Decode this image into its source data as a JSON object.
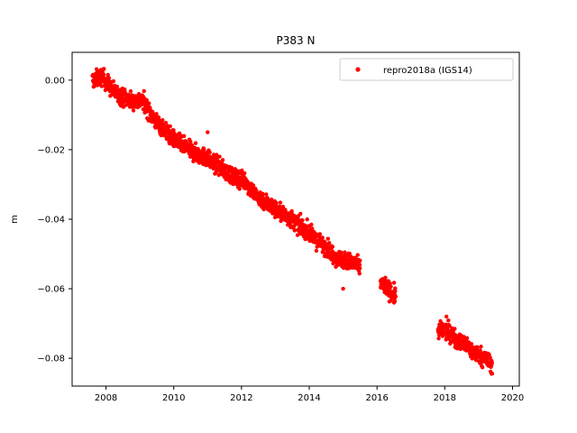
{
  "chart_data": {
    "type": "scatter",
    "title": "P383 N",
    "xlabel": "",
    "ylabel": "m",
    "xlim": [
      2007.0,
      2020.2
    ],
    "ylim": [
      -0.088,
      0.008
    ],
    "x_ticks": [
      "2008",
      "2010",
      "2012",
      "2014",
      "2016",
      "2018",
      "2020"
    ],
    "y_ticks": [
      "0.00",
      "−0.02",
      "−0.04",
      "−0.06",
      "−0.08"
    ],
    "grid": false,
    "legend_position": "top-right",
    "marker_color": "#ff0000",
    "series": [
      {
        "name": "repro2018a (IGS14)",
        "segments": [
          {
            "x": [
              2007.6,
              2007.9,
              2008.2,
              2008.5,
              2008.8,
              2009.1,
              2009.4,
              2009.7,
              2010.0,
              2010.3,
              2010.6,
              2010.9,
              2011.2,
              2011.5,
              2011.8,
              2012.1,
              2012.4,
              2012.7,
              2013.0,
              2013.3,
              2013.6,
              2013.9,
              2014.2,
              2014.5,
              2014.8,
              2015.1,
              2015.4,
              2015.5
            ],
            "y": [
              0.0,
              0.001,
              -0.003,
              -0.005,
              -0.006,
              -0.006,
              -0.011,
              -0.014,
              -0.017,
              -0.019,
              -0.021,
              -0.022,
              -0.024,
              -0.026,
              -0.028,
              -0.029,
              -0.033,
              -0.035,
              -0.037,
              -0.039,
              -0.041,
              -0.043,
              -0.046,
              -0.048,
              -0.051,
              -0.052,
              -0.053,
              -0.054
            ]
          },
          {
            "x": [
              2016.1,
              2016.25,
              2016.4,
              2016.55
            ],
            "y": [
              -0.058,
              -0.059,
              -0.061,
              -0.062
            ]
          },
          {
            "x": [
              2017.8,
              2018.0,
              2018.2,
              2018.4,
              2018.6,
              2018.8,
              2019.0,
              2019.2,
              2019.4
            ],
            "y": [
              -0.072,
              -0.072,
              -0.073,
              -0.075,
              -0.076,
              -0.078,
              -0.079,
              -0.08,
              -0.082
            ]
          }
        ],
        "outliers": [
          {
            "x": 2015.0,
            "y": -0.06
          },
          {
            "x": 2011.0,
            "y": -0.015
          },
          {
            "x": 2016.5,
            "y": -0.064
          },
          {
            "x": 2018.05,
            "y": -0.068
          }
        ]
      }
    ]
  }
}
